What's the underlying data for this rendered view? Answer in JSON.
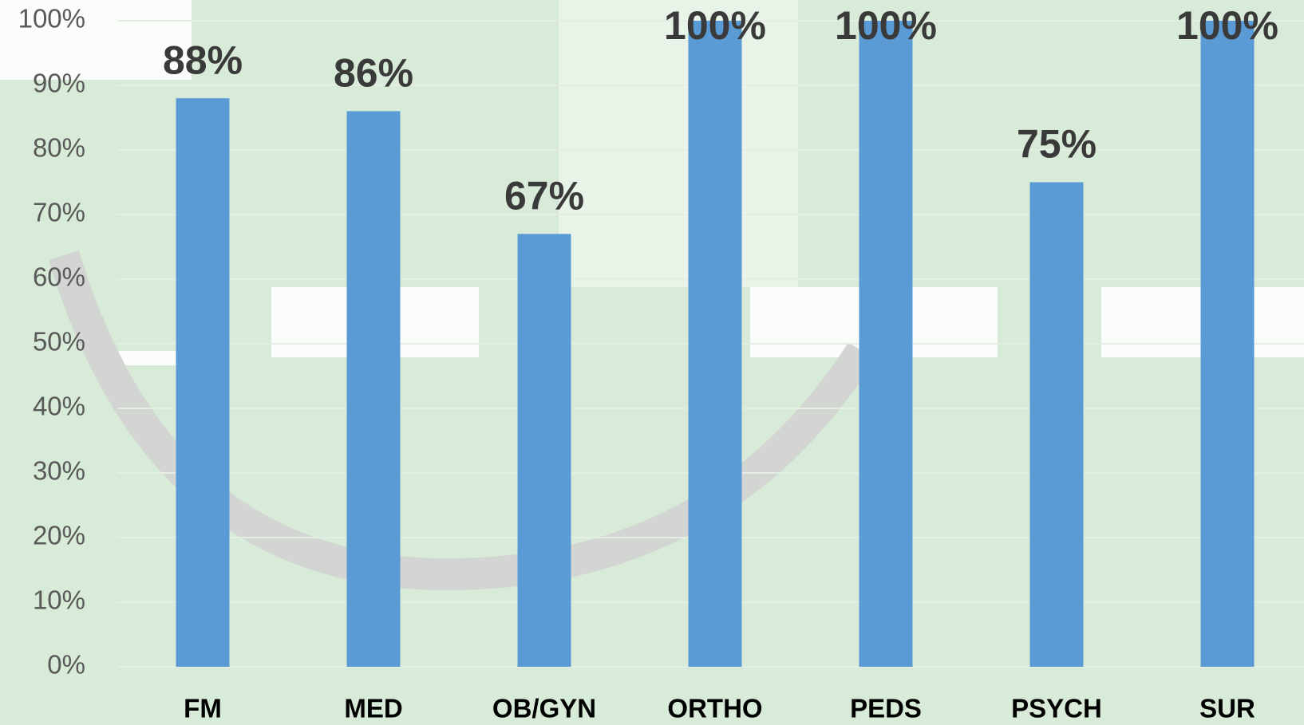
{
  "chart_data": {
    "type": "bar",
    "categories": [
      "FM",
      "MED",
      "OB/GYN",
      "ORTHO",
      "PEDS",
      "PSYCH",
      "SUR"
    ],
    "values": [
      88,
      86,
      67,
      100,
      100,
      75,
      100
    ],
    "value_labels": [
      "88%",
      "86%",
      "67%",
      "100%",
      "100%",
      "75%",
      "100%"
    ],
    "color": "#5b9bd5",
    "ylim": [
      0,
      100
    ],
    "yticks": [
      {
        "value": 0,
        "label": "0%"
      },
      {
        "value": 10,
        "label": "10%"
      },
      {
        "value": 20,
        "label": "20%"
      },
      {
        "value": 30,
        "label": "30%"
      },
      {
        "value": 40,
        "label": "40%"
      },
      {
        "value": 50,
        "label": "50%"
      },
      {
        "value": 60,
        "label": "60%"
      },
      {
        "value": 70,
        "label": "70%"
      },
      {
        "value": 80,
        "label": "80%"
      },
      {
        "value": 90,
        "label": "90%"
      },
      {
        "value": 100,
        "label": "100%"
      }
    ],
    "grid": true
  }
}
